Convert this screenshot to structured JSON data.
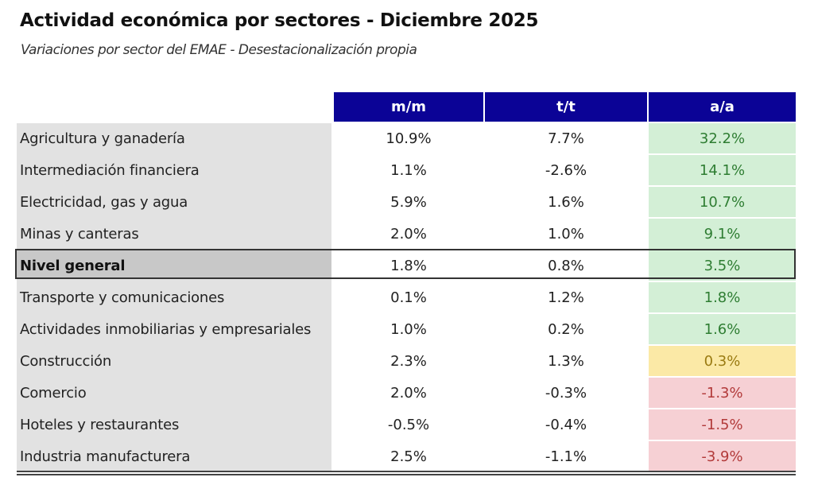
{
  "title": "Actividad económica por sectores - Diciembre 2025",
  "subtitle": "Variaciones por sector del EMAE - Desestacionalización propia",
  "columns": [
    "m/m",
    "t/t",
    "a/a"
  ],
  "colors": {
    "header_bg": "#0b0396",
    "positive_bg": "#d3efd6",
    "positive_text": "#2e7d32",
    "neutral_bg": "#fbe9a6",
    "neutral_text": "#9a7b12",
    "negative_bg": "#f6d0d4",
    "negative_text": "#b23a3a"
  },
  "rows": [
    {
      "sector": "Agricultura y ganadería",
      "mm": "10.9%",
      "tt": "7.7%",
      "aa": "32.2%",
      "status": "positive"
    },
    {
      "sector": "Intermediación financiera",
      "mm": "1.1%",
      "tt": "-2.6%",
      "aa": "14.1%",
      "status": "positive"
    },
    {
      "sector": "Electricidad, gas y agua",
      "mm": "5.9%",
      "tt": "1.6%",
      "aa": "10.7%",
      "status": "positive"
    },
    {
      "sector": "Minas y canteras",
      "mm": "2.0%",
      "tt": "1.0%",
      "aa": "9.1%",
      "status": "positive"
    },
    {
      "sector": "Nivel general",
      "mm": "1.8%",
      "tt": "0.8%",
      "aa": "3.5%",
      "status": "positive",
      "total": true
    },
    {
      "sector": "Transporte y comunicaciones",
      "mm": "0.1%",
      "tt": "1.2%",
      "aa": "1.8%",
      "status": "positive"
    },
    {
      "sector": "Actividades inmobiliarias y empresariales",
      "mm": "1.0%",
      "tt": "0.2%",
      "aa": "1.6%",
      "status": "positive"
    },
    {
      "sector": "Construcción",
      "mm": "2.3%",
      "tt": "1.3%",
      "aa": "0.3%",
      "status": "neutral"
    },
    {
      "sector": "Comercio",
      "mm": "2.0%",
      "tt": "-0.3%",
      "aa": "-1.3%",
      "status": "negative"
    },
    {
      "sector": "Hoteles y restaurantes",
      "mm": "-0.5%",
      "tt": "-0.4%",
      "aa": "-1.5%",
      "status": "negative"
    },
    {
      "sector": "Industria manufacturera",
      "mm": "2.5%",
      "tt": "-1.1%",
      "aa": "-3.9%",
      "status": "negative"
    }
  ]
}
